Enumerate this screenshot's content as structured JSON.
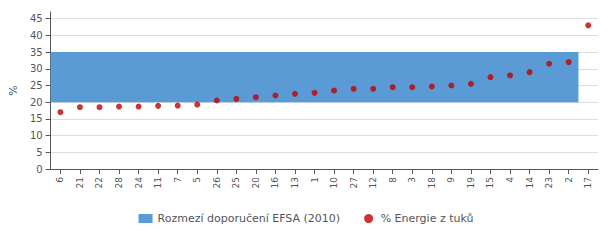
{
  "chart_data": {
    "type": "scatter",
    "categories": [
      "6",
      "21",
      "22",
      "28",
      "24",
      "11",
      "7",
      "5",
      "26",
      "25",
      "20",
      "16",
      "13",
      "1",
      "10",
      "27",
      "12",
      "8",
      "3",
      "18",
      "9",
      "19",
      "15",
      "4",
      "14",
      "23",
      "2",
      "17"
    ],
    "series": [
      {
        "name": "Rozmezí doporučení EFSA (2010)",
        "type": "band",
        "color": "#5B9BD5",
        "lower": 20,
        "upper": 35
      },
      {
        "name": "% Energie z tuků",
        "type": "scatter",
        "color": "#C00000",
        "marker": "circle",
        "values": [
          17.0,
          18.5,
          18.5,
          18.7,
          18.7,
          18.9,
          19.0,
          19.3,
          20.5,
          21.0,
          21.5,
          22.0,
          22.5,
          22.8,
          23.5,
          24.0,
          24.0,
          24.5,
          24.5,
          24.7,
          25.0,
          25.5,
          27.5,
          28.0,
          29.0,
          31.5,
          32.0,
          43.0
        ]
      }
    ],
    "ylabel": "%",
    "ylim": [
      0,
      47
    ],
    "yticks": [
      0,
      5,
      10,
      15,
      20,
      25,
      30,
      35,
      40,
      45
    ],
    "grid": true,
    "legend": "bottom"
  }
}
